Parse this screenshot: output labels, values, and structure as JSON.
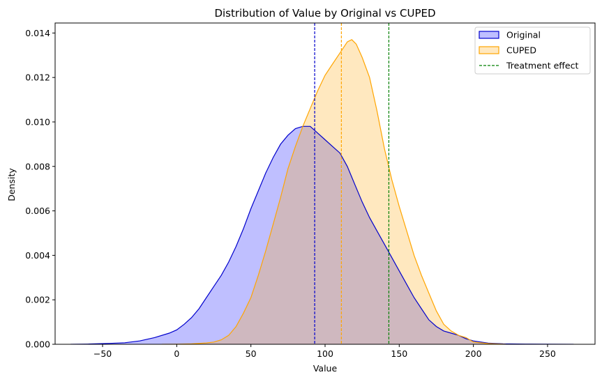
{
  "chart_data": {
    "type": "area",
    "title": "Distribution of Value by Original vs CUPED",
    "xlabel": "Value",
    "ylabel": "Density",
    "xlim": [
      -82,
      282
    ],
    "ylim": [
      0,
      0.01445
    ],
    "x_ticks": [
      -50,
      0,
      50,
      100,
      150,
      200,
      250
    ],
    "y_ticks": [
      0.0,
      0.002,
      0.004,
      0.006,
      0.008,
      0.01,
      0.012,
      0.014
    ],
    "x_tick_labels": [
      "−50",
      "0",
      "50",
      "100",
      "150",
      "200",
      "250"
    ],
    "y_tick_labels": [
      "0.000",
      "0.002",
      "0.004",
      "0.006",
      "0.008",
      "0.010",
      "0.012",
      "0.014"
    ],
    "grid": false,
    "legend_position": "top-right",
    "series": [
      {
        "name": "Original",
        "line_color": "#0000cc",
        "fill_color": "#0000ff",
        "fill_opacity": 0.25,
        "points": [
          [
            -71.5,
            0.0
          ],
          [
            -60,
            1e-05
          ],
          [
            -45,
            4e-05
          ],
          [
            -35,
            7e-05
          ],
          [
            -25,
            0.00015
          ],
          [
            -15,
            0.0003
          ],
          [
            -5,
            0.0005
          ],
          [
            0,
            0.00065
          ],
          [
            5,
            0.0009
          ],
          [
            10,
            0.0012
          ],
          [
            15,
            0.0016
          ],
          [
            20,
            0.0021
          ],
          [
            25,
            0.0026
          ],
          [
            30,
            0.0031
          ],
          [
            35,
            0.0037
          ],
          [
            40,
            0.0044
          ],
          [
            45,
            0.0052
          ],
          [
            50,
            0.0061
          ],
          [
            55,
            0.0069
          ],
          [
            60,
            0.0077
          ],
          [
            65,
            0.0084
          ],
          [
            70,
            0.009
          ],
          [
            75,
            0.0094
          ],
          [
            80,
            0.0097
          ],
          [
            85,
            0.0098
          ],
          [
            90,
            0.0098
          ],
          [
            95,
            0.0095
          ],
          [
            100,
            0.0092
          ],
          [
            105,
            0.0089
          ],
          [
            110,
            0.0086
          ],
          [
            115,
            0.008
          ],
          [
            120,
            0.0072
          ],
          [
            125,
            0.0064
          ],
          [
            130,
            0.0057
          ],
          [
            135,
            0.0051
          ],
          [
            140,
            0.0045
          ],
          [
            145,
            0.0039
          ],
          [
            150,
            0.0033
          ],
          [
            155,
            0.0027
          ],
          [
            160,
            0.0021
          ],
          [
            165,
            0.0016
          ],
          [
            170,
            0.0011
          ],
          [
            175,
            0.0008
          ],
          [
            180,
            0.0006
          ],
          [
            185,
            0.0005
          ],
          [
            190,
            0.0004
          ],
          [
            195,
            0.00025
          ],
          [
            200,
            0.00015
          ],
          [
            210,
            5e-05
          ],
          [
            220,
            2e-05
          ],
          [
            235,
            1e-05
          ],
          [
            250,
            5e-06
          ],
          [
            267.5,
            0.0
          ]
        ]
      },
      {
        "name": "CUPED",
        "line_color": "#ffa500",
        "fill_color": "#ffa500",
        "fill_opacity": 0.25,
        "points": [
          [
            -10,
            0.0
          ],
          [
            0,
            5e-06
          ],
          [
            10,
            2e-05
          ],
          [
            20,
            6e-05
          ],
          [
            25,
            0.0001
          ],
          [
            30,
            0.0002
          ],
          [
            35,
            0.0004
          ],
          [
            40,
            0.0008
          ],
          [
            45,
            0.0014
          ],
          [
            50,
            0.0021
          ],
          [
            55,
            0.0031
          ],
          [
            60,
            0.0042
          ],
          [
            65,
            0.0054
          ],
          [
            70,
            0.0066
          ],
          [
            75,
            0.0079
          ],
          [
            80,
            0.0089
          ],
          [
            85,
            0.0098
          ],
          [
            90,
            0.0106
          ],
          [
            95,
            0.0114
          ],
          [
            100,
            0.0121
          ],
          [
            105,
            0.0126
          ],
          [
            110,
            0.0131
          ],
          [
            115,
            0.0136
          ],
          [
            118,
            0.0137
          ],
          [
            121,
            0.0135
          ],
          [
            125,
            0.0129
          ],
          [
            130,
            0.012
          ],
          [
            135,
            0.0105
          ],
          [
            140,
            0.0088
          ],
          [
            145,
            0.0074
          ],
          [
            150,
            0.0062
          ],
          [
            155,
            0.0051
          ],
          [
            160,
            0.004
          ],
          [
            165,
            0.0031
          ],
          [
            170,
            0.0023
          ],
          [
            175,
            0.0015
          ],
          [
            180,
            0.0009
          ],
          [
            185,
            0.0006
          ],
          [
            190,
            0.0004
          ],
          [
            195,
            0.0003
          ],
          [
            200,
            0.0001
          ],
          [
            210,
            3e-05
          ],
          [
            222,
            0.0
          ]
        ]
      }
    ],
    "vertical_lines": [
      {
        "x": 93,
        "color": "#0000cc",
        "style": "dashed"
      },
      {
        "x": 111,
        "color": "#ffa500",
        "style": "dashed"
      },
      {
        "name": "Treatment effect",
        "x": 143,
        "color": "#008000",
        "style": "dashed"
      }
    ]
  }
}
